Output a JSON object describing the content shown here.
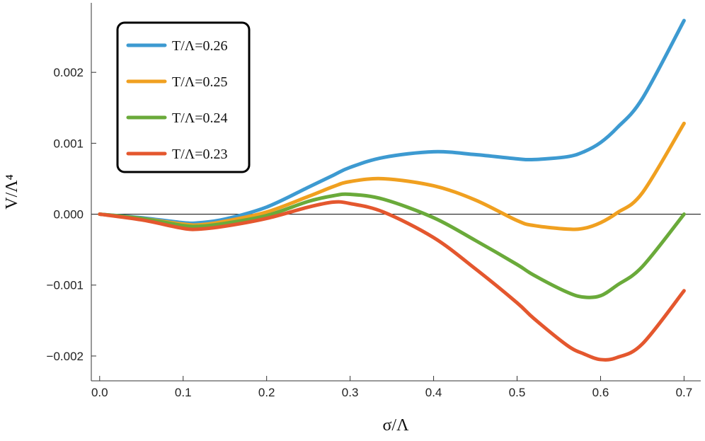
{
  "chart_data": {
    "type": "line",
    "xlabel": "σ/Λ",
    "ylabel": "V/Λ⁴",
    "xlim": [
      -0.01,
      0.72
    ],
    "ylim": [
      -0.00235,
      0.00298
    ],
    "grid": false,
    "legend_position": "top-left",
    "x_ticks": [
      {
        "value": 0.0,
        "label": "0.0"
      },
      {
        "value": 0.1,
        "label": "0.1"
      },
      {
        "value": 0.2,
        "label": "0.2"
      },
      {
        "value": 0.3,
        "label": "0.3"
      },
      {
        "value": 0.4,
        "label": "0.4"
      },
      {
        "value": 0.5,
        "label": "0.5"
      },
      {
        "value": 0.6,
        "label": "0.6"
      },
      {
        "value": 0.7,
        "label": "0.7"
      }
    ],
    "y_ticks": [
      {
        "value": 0.002,
        "label": "0.002"
      },
      {
        "value": 0.001,
        "label": "0.001"
      },
      {
        "value": 0.0,
        "label": "0.000"
      },
      {
        "value": -0.001,
        "label": "−0.001"
      },
      {
        "value": -0.002,
        "label": "−0.002"
      }
    ],
    "x": [
      0.0,
      0.05,
      0.1,
      0.12,
      0.15,
      0.2,
      0.25,
      0.28,
      0.3,
      0.34,
      0.4,
      0.45,
      0.5,
      0.52,
      0.56,
      0.58,
      0.6,
      0.62,
      0.65,
      0.7
    ],
    "series": [
      {
        "name": "T/Λ=0.26",
        "color": "#3d9ad1",
        "values": [
          0.0,
          -5e-05,
          -0.00012,
          -0.00012,
          -7e-05,
          0.0001,
          0.00038,
          0.00055,
          0.00066,
          0.0008,
          0.00088,
          0.00084,
          0.00078,
          0.00077,
          0.00081,
          0.00088,
          0.00101,
          0.00122,
          0.00163,
          0.00273
        ]
      },
      {
        "name": "T/Λ=0.25",
        "color": "#f0a020",
        "values": [
          0.0,
          -6e-05,
          -0.00014,
          -0.00015,
          -0.0001,
          3e-05,
          0.00025,
          0.00039,
          0.00046,
          0.0005,
          0.0004,
          0.0002,
          -9e-05,
          -0.00016,
          -0.00021,
          -0.0002,
          -0.00012,
          2e-05,
          0.0003,
          0.00128
        ]
      },
      {
        "name": "T/Λ=0.24",
        "color": "#6aaa3a",
        "values": [
          0.0,
          -6e-05,
          -0.00016,
          -0.00017,
          -0.00013,
          -2e-05,
          0.00018,
          0.00026,
          0.00028,
          0.00021,
          -5e-05,
          -0.00037,
          -0.00071,
          -0.00086,
          -0.0011,
          -0.00117,
          -0.00115,
          -0.001,
          -0.00074,
          0.0
        ]
      },
      {
        "name": "T/Λ=0.23",
        "color": "#e4572e",
        "values": [
          0.0,
          -8e-05,
          -0.0002,
          -0.00021,
          -0.00017,
          -6e-05,
          0.0001,
          0.00017,
          0.00015,
          3e-05,
          -0.00033,
          -0.00077,
          -0.00125,
          -0.00147,
          -0.00185,
          -0.00197,
          -0.00205,
          -0.00202,
          -0.00183,
          -0.00108
        ]
      }
    ]
  }
}
